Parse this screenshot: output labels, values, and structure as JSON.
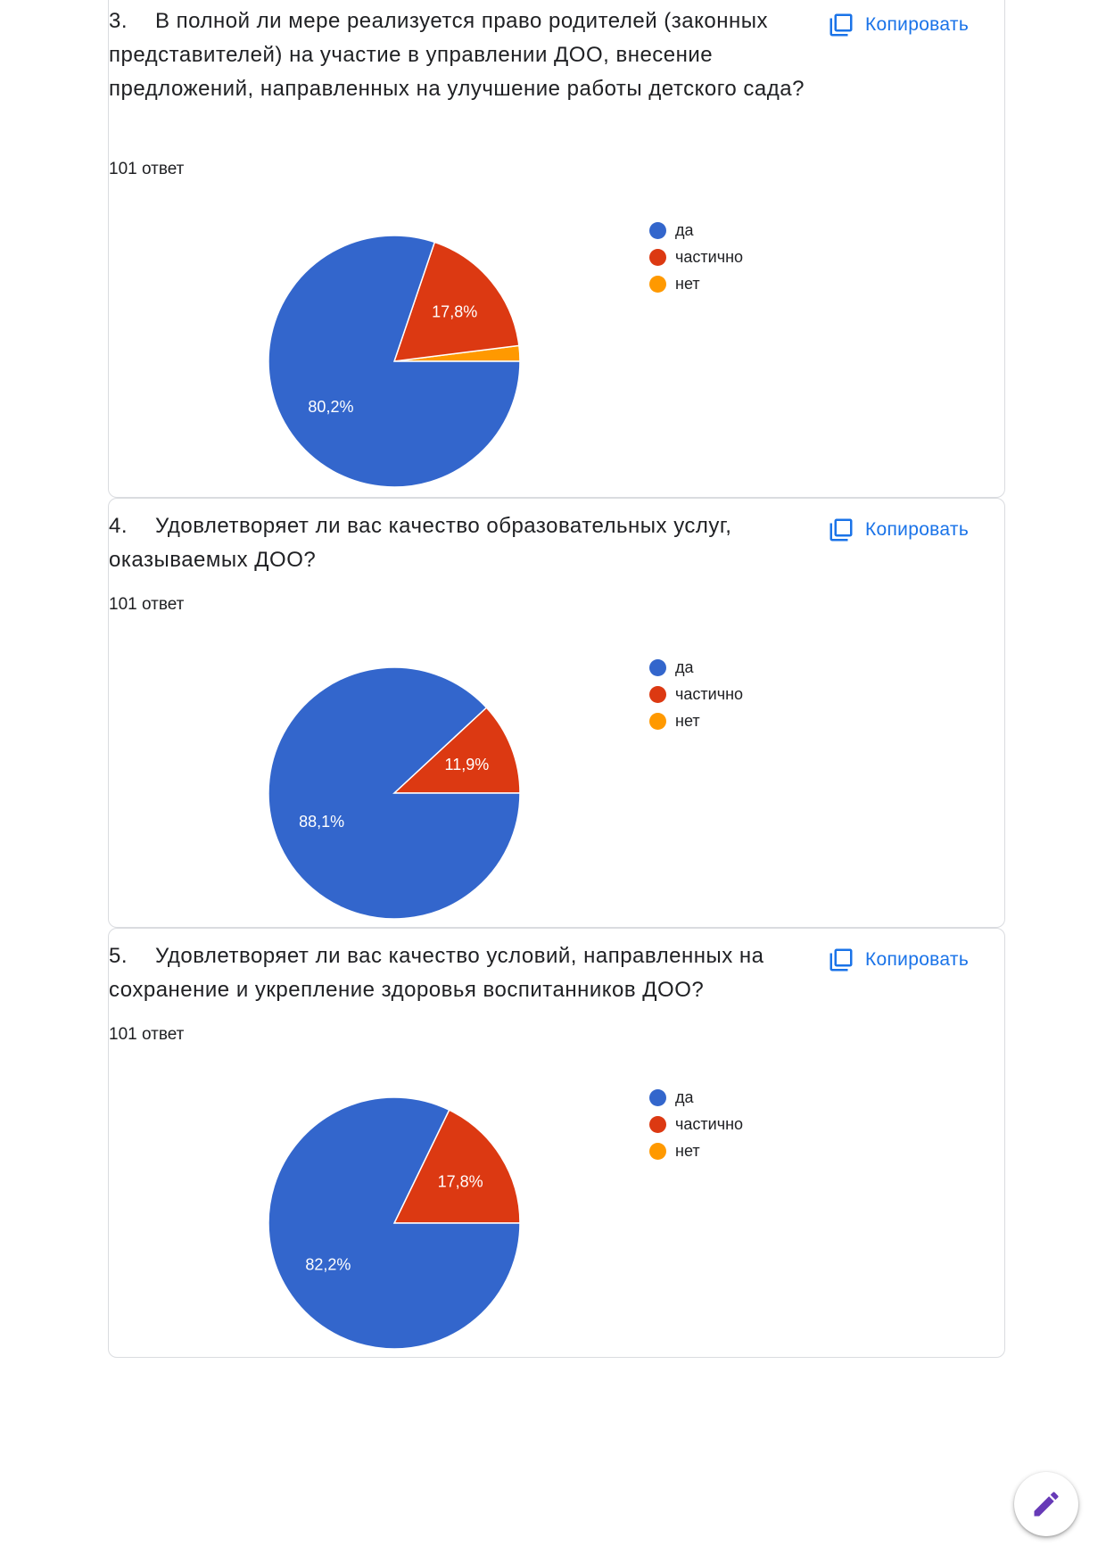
{
  "colors": {
    "yes": "#3366cc",
    "partial": "#dc3912",
    "no": "#ff9900",
    "accent": "#1a73e8",
    "fab_icon": "#673ab7"
  },
  "copy_label": "Копировать",
  "questions": [
    {
      "number": "3.",
      "title": "В полной ли мере реализуется право родителей (законных представителей) на участие в управлении ДОО, внесение предложений, направленных на улучшение работы детского сада?",
      "count": "101 ответ"
    },
    {
      "number": "4.",
      "title": "Удовлетворяет ли вас качество образовательных услуг, оказываемых ДОО?",
      "count": "101 ответ"
    },
    {
      "number": "5.",
      "title": "Удовлетворяет ли вас качество условий, направленных на сохранение и укрепление здоровья воспитанников ДОО?",
      "count": "101 ответ"
    }
  ],
  "chart_data": [
    {
      "type": "pie",
      "categories": [
        "да",
        "частично",
        "нет"
      ],
      "values": [
        80.2,
        17.8,
        2.0
      ],
      "labels": [
        "80,2%",
        "17,8%",
        ""
      ],
      "legend": "right"
    },
    {
      "type": "pie",
      "categories": [
        "да",
        "частично",
        "нет"
      ],
      "values": [
        88.1,
        11.9,
        0
      ],
      "labels": [
        "88,1%",
        "11,9%",
        ""
      ],
      "legend": "right"
    },
    {
      "type": "pie",
      "categories": [
        "да",
        "частично",
        "нет"
      ],
      "values": [
        82.2,
        17.8,
        0
      ],
      "labels": [
        "82,2%",
        "17,8%",
        ""
      ],
      "legend": "right"
    }
  ]
}
